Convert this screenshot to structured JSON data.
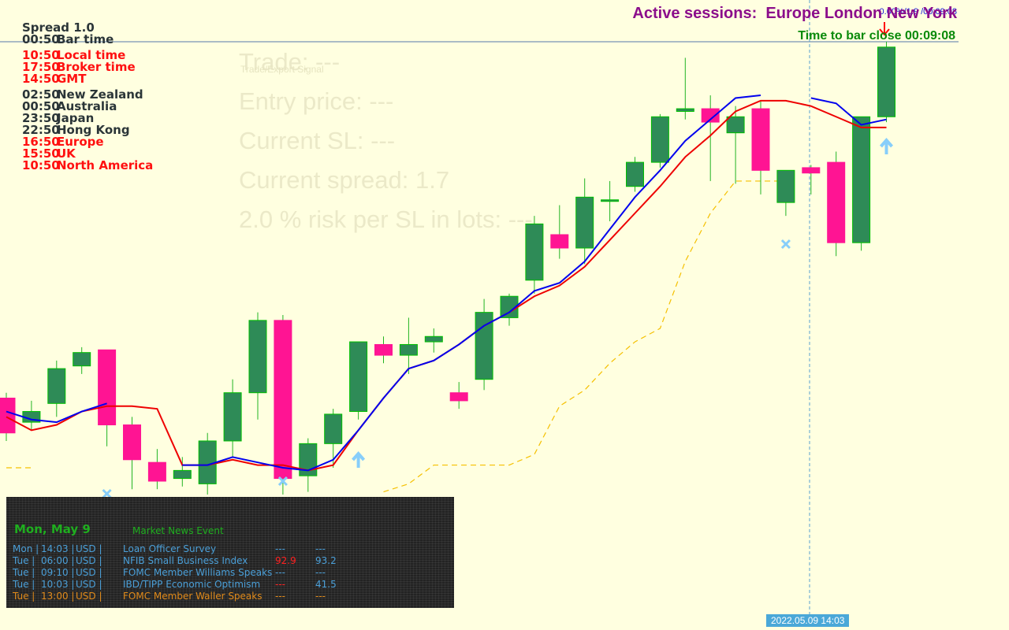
{
  "header": {
    "active_sessions_label": "Active sessions:",
    "active_sessions": "Europe London New York",
    "bar_close": "Time to bar close 00:09:08",
    "price_tag": "0.00%/1.9 /00:09:08"
  },
  "session_panel": {
    "spread": "Spread 1.0",
    "rows": [
      {
        "time": "00:50",
        "name": "Bar time",
        "color": "#2b3538"
      },
      {
        "time": "10:50",
        "name": "Local time",
        "color": "#ff1010"
      },
      {
        "time": "17:50",
        "name": "Broker time",
        "color": "#ff1010"
      },
      {
        "time": "14:50",
        "name": "GMT",
        "color": "#ff1010"
      },
      {
        "time": "02:50",
        "name": "New Zealand",
        "color": "#2b3538"
      },
      {
        "time": "00:50",
        "name": "Australia",
        "color": "#2b3538"
      },
      {
        "time": "23:50",
        "name": "Japan",
        "color": "#2b3538"
      },
      {
        "time": "22:50",
        "name": "Hong Kong",
        "color": "#2b3538"
      },
      {
        "time": "16:50",
        "name": "Europe",
        "color": "#ff1010"
      },
      {
        "time": "15:50",
        "name": "UK",
        "color": "#ff1010"
      },
      {
        "time": "10:50",
        "name": "North America",
        "color": "#ff1010"
      }
    ]
  },
  "trade_info": {
    "trade": "Trade: ---",
    "trade_sub": "Trade/Export Signal",
    "entry": "Entry price: ---",
    "current_sl": "Current SL: ---",
    "current_spread": "Current spread: 1.7",
    "risk": "2.0 % risk per SL in lots: ---"
  },
  "news": {
    "date": "Mon, May 9",
    "header_label": "Market News Event",
    "rows": [
      {
        "day": "Mon",
        "time": "14:03",
        "cur": "USD",
        "event": "Loan Officer Survey",
        "actual": "---",
        "forecast": "---",
        "color": "#4a9fd8"
      },
      {
        "day": "Tue",
        "time": "06:00",
        "cur": "USD",
        "event": "NFIB Small Business Index",
        "actual": "92.9",
        "forecast": "93.2",
        "color": "#4a9fd8",
        "actual_color": "#ff2020"
      },
      {
        "day": "Tue",
        "time": "09:10",
        "cur": "USD",
        "event": "FOMC Member Williams Speaks",
        "actual": "---",
        "forecast": "---",
        "color": "#4a9fd8"
      },
      {
        "day": "Tue",
        "time": "10:03",
        "cur": "USD",
        "event": "IBD/TIPP Economic Optimism",
        "actual": "---",
        "forecast": "41.5",
        "color": "#4a9fd8",
        "actual_color": "#ff2020"
      },
      {
        "day": "Tue",
        "time": "13:00",
        "cur": "USD",
        "event": "FOMC Member Waller Speaks",
        "actual": "---",
        "forecast": "---",
        "color": "#e08a1a"
      }
    ]
  },
  "crosshair_time": "2022.05.09 14:03",
  "colors": {
    "bull": "#2e8b57",
    "bull_edge": "#00c000",
    "bear": "#ff1493",
    "wick": "#22b422",
    "ma_blue": "#0000ee",
    "ma_red": "#ee0000",
    "trail": "#f5c000",
    "arrow": "#87cefa"
  },
  "chart_data": {
    "type": "candlestick",
    "candles": [
      {
        "o": 1.0553,
        "h": 1.0555,
        "l": 1.0537,
        "c": 1.054
      },
      {
        "o": 1.0544,
        "h": 1.0552,
        "l": 1.0541,
        "c": 1.0548
      },
      {
        "o": 1.0551,
        "h": 1.0567,
        "l": 1.0546,
        "c": 1.0564
      },
      {
        "o": 1.0565,
        "h": 1.0572,
        "l": 1.0562,
        "c": 1.057
      },
      {
        "o": 1.0571,
        "h": 1.0571,
        "l": 1.0535,
        "c": 1.0543
      },
      {
        "o": 1.0543,
        "h": 1.0546,
        "l": 1.0519,
        "c": 1.053
      },
      {
        "o": 1.0529,
        "h": 1.0534,
        "l": 1.0519,
        "c": 1.0522
      },
      {
        "o": 1.0523,
        "h": 1.0531,
        "l": 1.052,
        "c": 1.0526
      },
      {
        "o": 1.0521,
        "h": 1.054,
        "l": 1.0517,
        "c": 1.0537
      },
      {
        "o": 1.0537,
        "h": 1.056,
        "l": 1.0531,
        "c": 1.0555
      },
      {
        "o": 1.0555,
        "h": 1.0585,
        "l": 1.0545,
        "c": 1.0582
      },
      {
        "o": 1.0582,
        "h": 1.0584,
        "l": 1.0517,
        "c": 1.0523
      },
      {
        "o": 1.0524,
        "h": 1.0538,
        "l": 1.0518,
        "c": 1.0536
      },
      {
        "o": 1.0536,
        "h": 1.0549,
        "l": 1.0527,
        "c": 1.0547
      },
      {
        "o": 1.0548,
        "h": 1.0574,
        "l": 1.0545,
        "c": 1.0574
      },
      {
        "o": 1.0573,
        "h": 1.0576,
        "l": 1.0566,
        "c": 1.0569
      },
      {
        "o": 1.0569,
        "h": 1.0583,
        "l": 1.0562,
        "c": 1.0573
      },
      {
        "o": 1.0574,
        "h": 1.0579,
        "l": 1.057,
        "c": 1.0576
      },
      {
        "o": 1.0555,
        "h": 1.0559,
        "l": 1.0549,
        "c": 1.0552
      },
      {
        "o": 1.056,
        "h": 1.059,
        "l": 1.0556,
        "c": 1.0585
      },
      {
        "o": 1.0583,
        "h": 1.0592,
        "l": 1.058,
        "c": 1.0591
      },
      {
        "o": 1.0597,
        "h": 1.0621,
        "l": 1.0592,
        "c": 1.0618
      },
      {
        "o": 1.0614,
        "h": 1.0625,
        "l": 1.0605,
        "c": 1.0609
      },
      {
        "o": 1.0609,
        "h": 1.0635,
        "l": 1.0603,
        "c": 1.0628
      },
      {
        "o": 1.0627,
        "h": 1.0634,
        "l": 1.0619,
        "c": 1.0627
      },
      {
        "o": 1.0632,
        "h": 1.0643,
        "l": 1.063,
        "c": 1.0641
      },
      {
        "o": 1.0641,
        "h": 1.0659,
        "l": 1.0639,
        "c": 1.0658
      },
      {
        "o": 1.066,
        "h": 1.068,
        "l": 1.0657,
        "c": 1.0661
      },
      {
        "o": 1.0661,
        "h": 1.0666,
        "l": 1.0634,
        "c": 1.0656
      },
      {
        "o": 1.0652,
        "h": 1.0662,
        "l": 1.0633,
        "c": 1.0658
      },
      {
        "o": 1.0661,
        "h": 1.0664,
        "l": 1.0629,
        "c": 1.0638
      },
      {
        "o": 1.0626,
        "h": 1.0637,
        "l": 1.0621,
        "c": 1.0638
      },
      {
        "o": 1.0639,
        "h": 1.064,
        "l": 1.0629,
        "c": 1.0637
      },
      {
        "o": 1.0641,
        "h": 1.0645,
        "l": 1.0606,
        "c": 1.0611
      },
      {
        "o": 1.0611,
        "h": 1.0657,
        "l": 1.0608,
        "c": 1.0658
      },
      {
        "o": 1.0658,
        "h": 1.0686,
        "l": 1.0656,
        "c": 1.0684
      }
    ],
    "ma_blue": [
      1.0548,
      1.0545,
      1.0544,
      1.0548,
      1.0551,
      null,
      null,
      1.0528,
      1.0528,
      1.0531,
      1.0529,
      1.0527,
      1.0526,
      1.053,
      1.0541,
      1.0553,
      1.0564,
      1.0567,
      1.0573,
      1.058,
      1.0585,
      1.0593,
      1.0596,
      1.0604,
      1.0616,
      1.0628,
      1.0638,
      1.0649,
      1.0657,
      1.0665,
      1.0666,
      null,
      1.0665,
      1.0663,
      1.0655,
      1.0657
    ],
    "ma_red": [
      1.0546,
      1.0541,
      1.0543,
      1.0548,
      1.055,
      1.055,
      1.0549,
      1.0528,
      1.0528,
      1.053,
      1.0528,
      1.0528,
      1.0526,
      1.0528,
      1.0541,
      1.0553,
      1.0564,
      1.0567,
      1.0573,
      1.058,
      1.0585,
      1.0591,
      1.0595,
      1.0602,
      1.0612,
      1.0622,
      1.0632,
      1.0643,
      1.0651,
      1.066,
      1.0664,
      1.0664,
      1.0662,
      1.0658,
      1.0654,
      1.0654
    ],
    "trail": [
      1.0527,
      1.0527,
      null,
      null,
      null,
      null,
      null,
      null,
      null,
      null,
      null,
      null,
      null,
      null,
      null,
      1.0518,
      1.0521,
      1.0528,
      1.0528,
      1.0528,
      1.0528,
      1.0532,
      1.055,
      1.0556,
      1.0566,
      1.0574,
      1.0579,
      1.0604,
      1.0622,
      1.0634,
      1.0634,
      1.0634
    ]
  }
}
